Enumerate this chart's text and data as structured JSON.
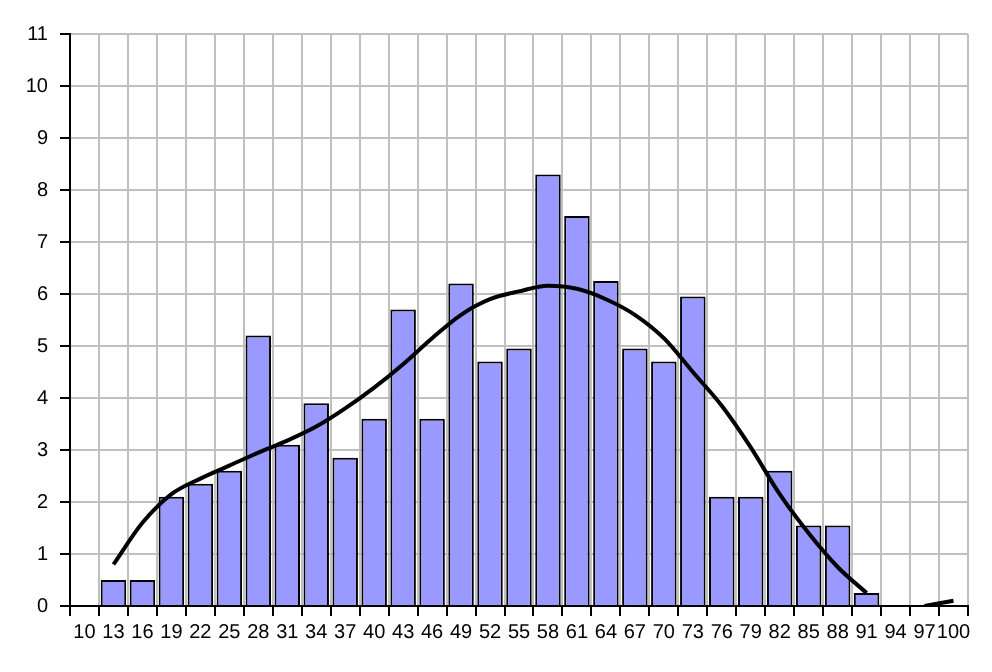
{
  "chart_data": {
    "type": "bar",
    "categories": [
      "10",
      "13",
      "16",
      "19",
      "22",
      "25",
      "28",
      "31",
      "34",
      "37",
      "40",
      "43",
      "46",
      "49",
      "52",
      "55",
      "58",
      "61",
      "64",
      "67",
      "70",
      "73",
      "76",
      "79",
      "82",
      "85",
      "88",
      "91",
      "94",
      "97",
      "100"
    ],
    "series": [
      {
        "type": "bar",
        "color": "#9999ff",
        "values": [
          0,
          0.5,
          0.5,
          2.1,
          2.35,
          2.6,
          5.2,
          3.1,
          3.9,
          2.85,
          3.6,
          5.7,
          3.6,
          6.2,
          4.7,
          4.95,
          8.3,
          7.5,
          6.25,
          4.95,
          4.7,
          5.95,
          2.1,
          2.1,
          2.6,
          1.55,
          1.55,
          0.25,
          0,
          0,
          0
        ]
      },
      {
        "type": "line",
        "color": "#000000",
        "values": [
          null,
          0.8,
          1.6,
          2.15,
          2.45,
          2.7,
          2.95,
          3.18,
          3.45,
          3.8,
          4.2,
          4.65,
          5.15,
          5.6,
          5.9,
          6.05,
          6.16,
          6.1,
          5.9,
          5.6,
          5.15,
          4.5,
          3.85,
          3.05,
          2.15,
          1.4,
          0.75,
          0.25,
          null,
          0,
          0.1
        ]
      }
    ],
    "ylim": [
      0,
      11
    ],
    "yticks": [
      0,
      1,
      2,
      3,
      4,
      5,
      6,
      7,
      8,
      9,
      10,
      11
    ],
    "grid": true,
    "legend": false
  }
}
